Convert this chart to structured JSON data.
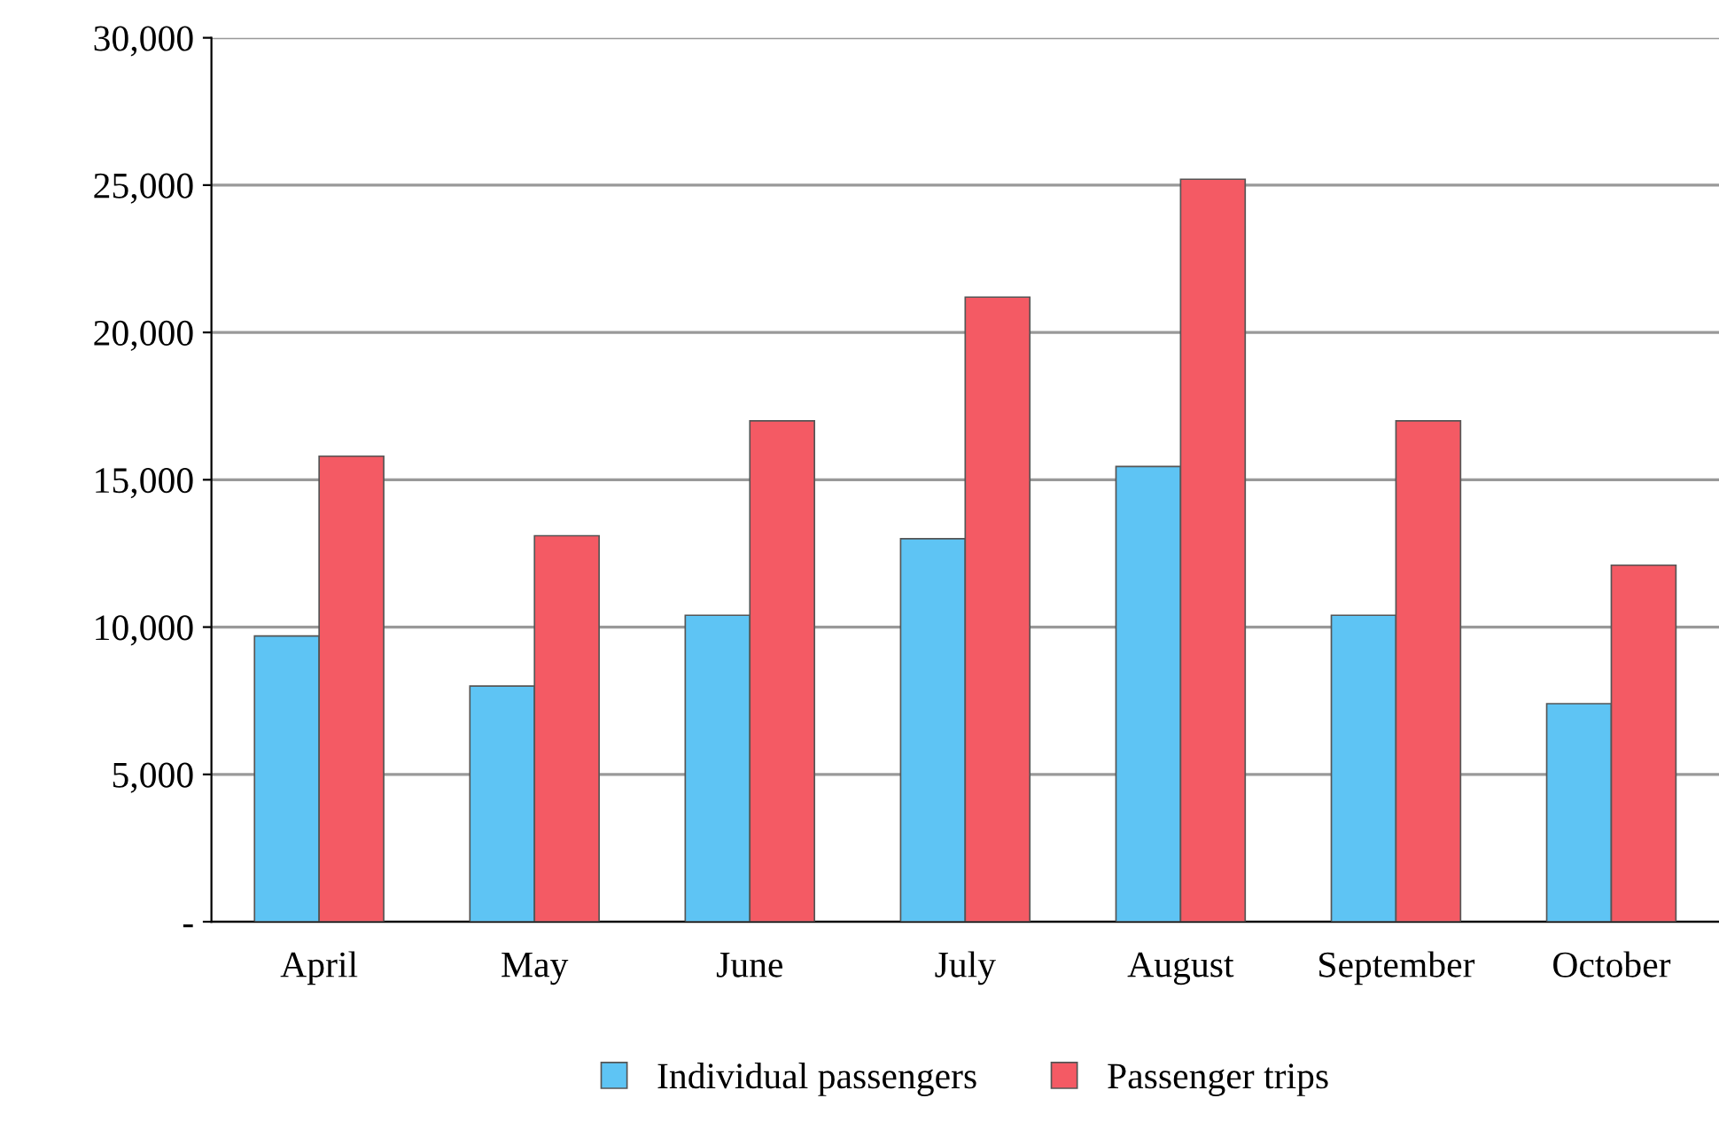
{
  "chart_data": {
    "type": "bar",
    "categories": [
      "April",
      "May",
      "June",
      "July",
      "August",
      "September",
      "October"
    ],
    "series": [
      {
        "name": "Individual passengers",
        "color": "#5ec4f4",
        "values": [
          9700,
          8000,
          10400,
          13000,
          15450,
          10400,
          7400
        ]
      },
      {
        "name": "Passenger trips",
        "color": "#f45a64",
        "values": [
          15800,
          13100,
          17000,
          21200,
          25200,
          17000,
          12100
        ]
      }
    ],
    "ylim": [
      0,
      30000
    ],
    "yticks": [
      {
        "value": 0,
        "label": "-"
      },
      {
        "value": 5000,
        "label": "5,000"
      },
      {
        "value": 10000,
        "label": "10,000"
      },
      {
        "value": 15000,
        "label": "15,000"
      },
      {
        "value": 20000,
        "label": "20,000"
      },
      {
        "value": 25000,
        "label": "25,000"
      },
      {
        "value": 30000,
        "label": "30,000"
      }
    ],
    "grid": "y",
    "legend": "bottom"
  }
}
